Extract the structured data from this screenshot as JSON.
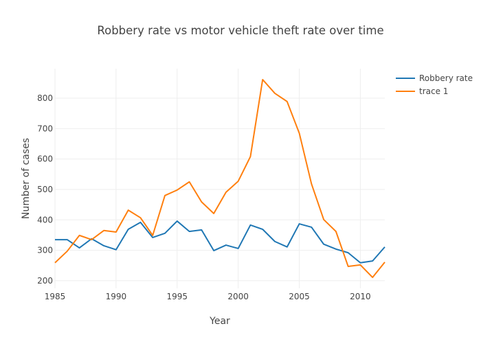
{
  "chart_data": {
    "type": "line",
    "title": "Robbery rate vs motor vehicle theft rate over time",
    "xlabel": "Year",
    "ylabel": "Number of cases",
    "xlim": [
      1985,
      2012
    ],
    "ylim": [
      175,
      897
    ],
    "xticks": [
      1985,
      1990,
      1995,
      2000,
      2005,
      2010
    ],
    "yticks": [
      200,
      300,
      400,
      500,
      600,
      700,
      800
    ],
    "grid": true,
    "legend_position": "top-right",
    "x": [
      1985,
      1986,
      1987,
      1988,
      1989,
      1990,
      1991,
      1992,
      1993,
      1994,
      1995,
      1996,
      1997,
      1998,
      1999,
      2000,
      2001,
      2002,
      2003,
      2004,
      2005,
      2006,
      2007,
      2008,
      2009,
      2010,
      2011,
      2012
    ],
    "series": [
      {
        "name": "Robbery rate",
        "color": "#1f77b4",
        "values": [
          335,
          335,
          308,
          338,
          315,
          302,
          369,
          392,
          342,
          356,
          396,
          362,
          367,
          299,
          317,
          306,
          383,
          369,
          329,
          311,
          387,
          376,
          320,
          304,
          292,
          259,
          265,
          311
        ]
      },
      {
        "name": "trace 1",
        "color": "#ff7f0e",
        "values": [
          259,
          297,
          349,
          335,
          365,
          360,
          432,
          407,
          349,
          480,
          498,
          525,
          459,
          421,
          491,
          527,
          608,
          861,
          816,
          789,
          685,
          518,
          401,
          362,
          247,
          252,
          211,
          261
        ]
      }
    ]
  }
}
